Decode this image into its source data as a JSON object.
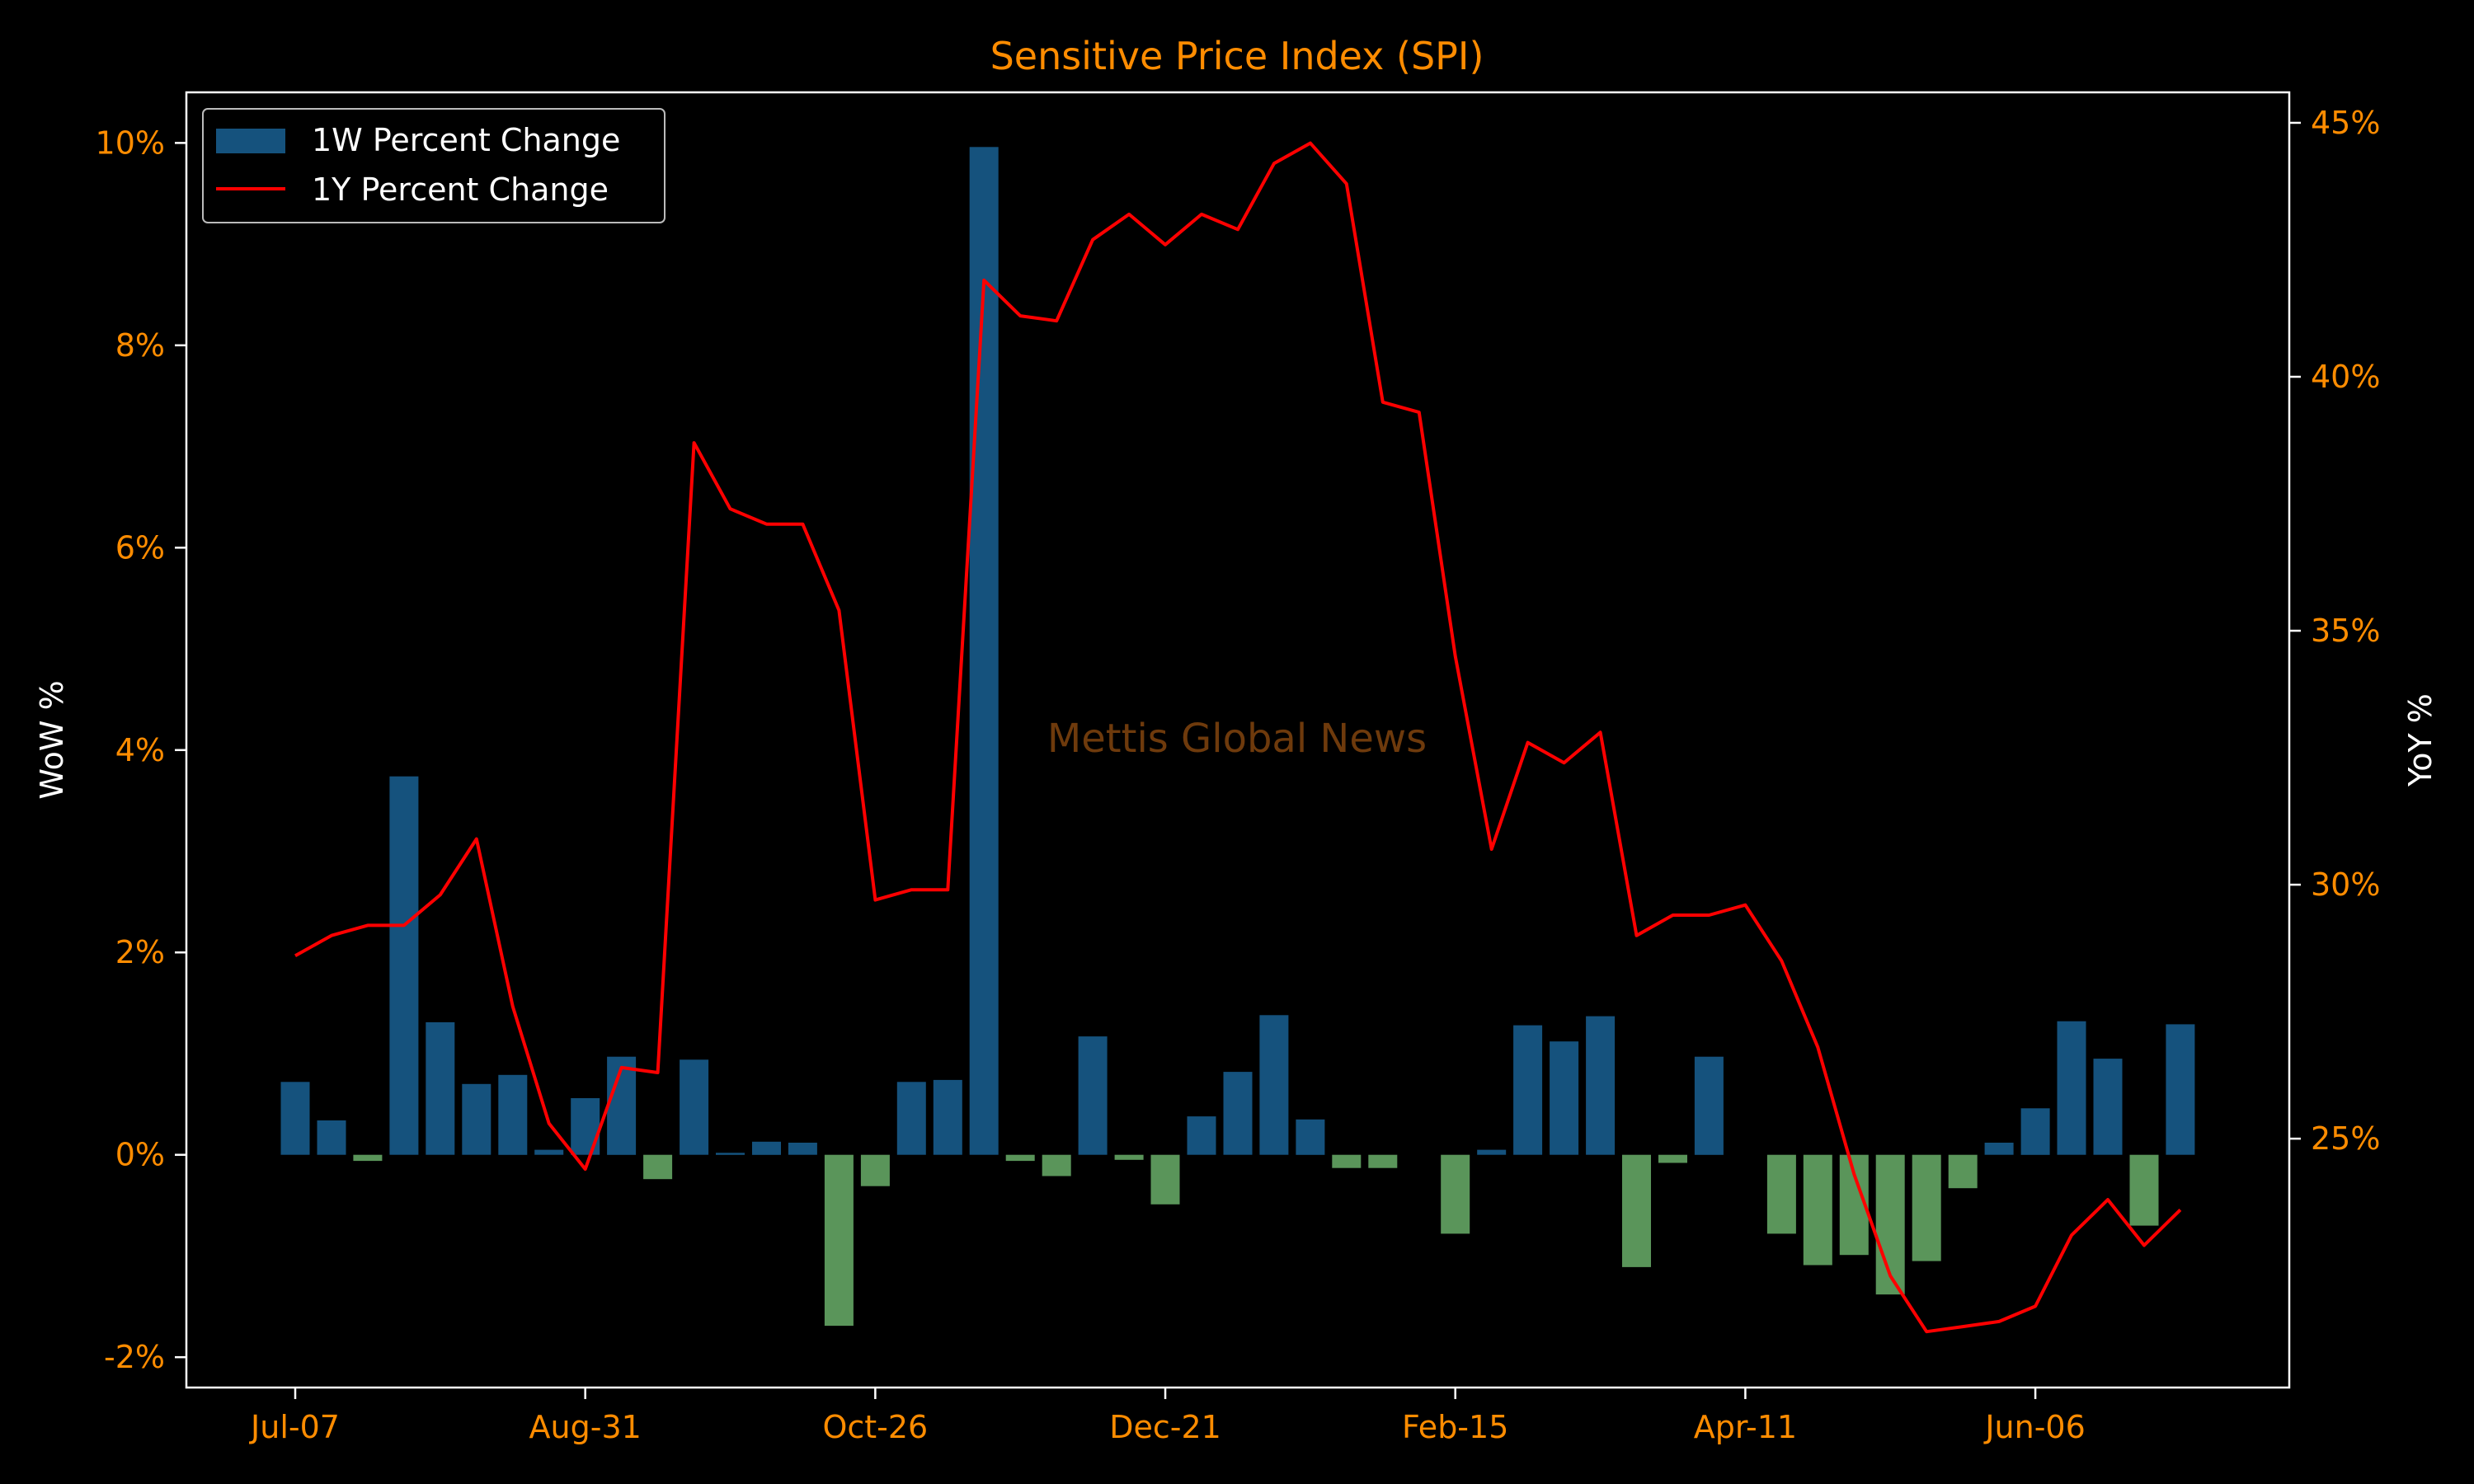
{
  "colors": {
    "background": "#000000",
    "frame": "#ffffff",
    "accent_text": "#ff8c00",
    "axis_label": "#ffffff",
    "positive_bar": "#15527d",
    "negative_bar": "#5a955a",
    "yoy_line": "#ff0000",
    "watermark": "#6e3a0c"
  },
  "chart_data": {
    "type": "bar",
    "title": "Sensitive Price Index (SPI)",
    "watermark": "Mettis Global News",
    "xlabel": "",
    "ylabel_left": "WoW %",
    "ylabel_right": "YoY %",
    "ylim_left": [
      -2.3,
      10.5
    ],
    "ylim_right": [
      20.1,
      45.6
    ],
    "yticks_left": [
      -2,
      0,
      2,
      4,
      6,
      8,
      10
    ],
    "ytick_labels_left": [
      "-2%",
      "0%",
      "2%",
      "4%",
      "6%",
      "8%",
      "10%"
    ],
    "yticks_right": [
      25,
      30,
      35,
      40,
      45
    ],
    "ytick_labels_right": [
      "25%",
      "30%",
      "35%",
      "40%",
      "45%"
    ],
    "xtick_indices": [
      0,
      8,
      16,
      24,
      32,
      40,
      48
    ],
    "xtick_labels": [
      "Jul-07",
      "Aug-31",
      "Oct-26",
      "Dec-21",
      "Feb-15",
      "Apr-11",
      "Jun-06"
    ],
    "legend": {
      "position": "top-left",
      "entries": [
        "1W Percent Change",
        "1Y Percent Change"
      ]
    },
    "grid": false,
    "series": [
      {
        "name": "1W Percent Change",
        "kind": "bar",
        "axis": "left",
        "values": [
          0.72,
          0.34,
          -0.06,
          3.74,
          1.31,
          0.7,
          0.79,
          0.05,
          0.56,
          0.97,
          -0.24,
          0.94,
          0.02,
          0.13,
          0.12,
          -1.69,
          -0.31,
          0.72,
          0.74,
          9.96,
          -0.06,
          -0.21,
          1.17,
          -0.05,
          -0.49,
          0.38,
          0.82,
          1.38,
          0.35,
          -0.13,
          -0.13,
          0.0,
          -0.78,
          0.05,
          1.28,
          1.12,
          1.37,
          -1.11,
          -0.08,
          0.97,
          0.0,
          -0.78,
          -1.09,
          -0.99,
          -1.38,
          -1.05,
          -0.33,
          0.12,
          0.46,
          1.32,
          0.95,
          -0.7,
          1.29
        ]
      },
      {
        "name": "1Y Percent Change",
        "kind": "line",
        "axis": "right",
        "values": [
          28.6,
          29.0,
          29.2,
          29.2,
          29.8,
          30.9,
          27.6,
          25.3,
          24.4,
          26.4,
          26.3,
          38.7,
          37.4,
          37.1,
          37.1,
          35.4,
          29.7,
          29.9,
          29.9,
          41.9,
          41.2,
          41.1,
          42.7,
          43.2,
          42.6,
          43.2,
          42.9,
          44.2,
          44.6,
          43.8,
          39.5,
          39.3,
          34.5,
          30.7,
          32.8,
          32.4,
          33.0,
          29.0,
          29.4,
          29.4,
          29.6,
          28.5,
          26.8,
          24.3,
          22.3,
          21.2,
          21.3,
          21.4,
          21.7,
          23.1,
          23.8,
          22.9,
          23.6
        ]
      }
    ]
  }
}
